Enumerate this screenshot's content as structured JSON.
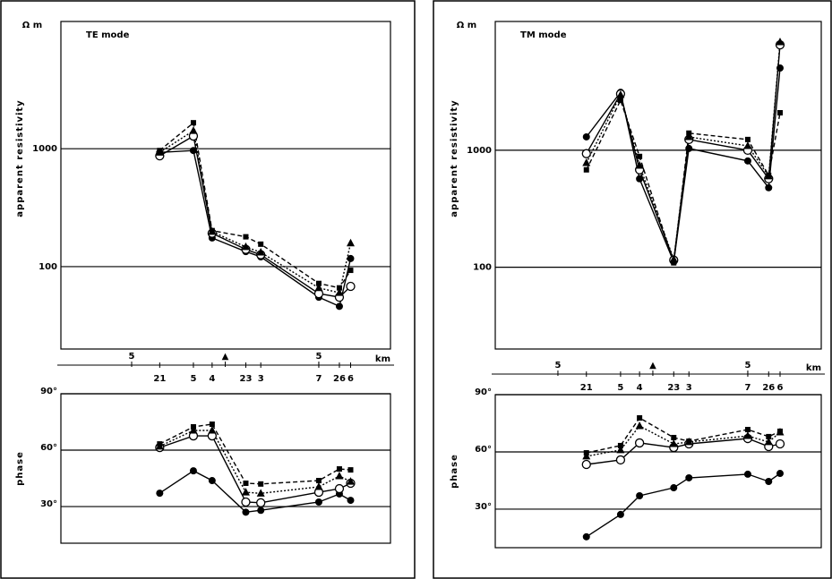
{
  "chart_data": [
    {
      "type": "line",
      "title": "TE mode",
      "yunit": "Ω m",
      "ylabel": "apparent resistivity",
      "log_y": true,
      "ylim": [
        20,
        12000
      ],
      "yticks": [
        100,
        1000
      ],
      "grid": true,
      "xlim": [
        1.22,
        18.83
      ],
      "xticks": [
        5,
        {
          "value": 10,
          "label": "▲"
        },
        {
          "value": 15,
          "label": "5"
        }
      ],
      "xlabel": "km",
      "x": [
        6.5,
        8.3,
        9.3,
        11.1,
        11.9,
        15.0,
        16.1,
        16.7
      ],
      "x_labels": [
        "21",
        "5",
        "4",
        "23",
        "3",
        "7",
        "26",
        "6"
      ],
      "series": [
        {
          "marker": "filled-circle",
          "dash": "solid",
          "color": "#000000",
          "values": [
            930,
            965,
            175,
            134,
            121,
            55,
            46,
            117
          ]
        },
        {
          "marker": "open-circle",
          "dash": "solid",
          "color": "#000000",
          "values": [
            870,
            1280,
            192,
            140,
            126,
            59,
            55,
            68
          ]
        },
        {
          "marker": "triangle",
          "dash": "dotted",
          "color": "#000000",
          "values": [
            930,
            1420,
            198,
            147,
            132,
            66,
            60,
            158
          ]
        },
        {
          "marker": "square",
          "dash": "dashed",
          "color": "#000000",
          "values": [
            965,
            1660,
            202,
            179,
            155,
            72,
            66,
            93
          ]
        }
      ]
    },
    {
      "type": "line",
      "ylabel": "phase",
      "ylim": [
        10.5,
        90
      ],
      "yticks": [
        {
          "value": 30,
          "label": "30°"
        },
        {
          "value": 60,
          "label": "60°"
        },
        {
          "value": 90,
          "label": "90°"
        }
      ],
      "grid": true,
      "xlim": [
        1.22,
        18.83
      ],
      "x": [
        6.5,
        8.3,
        9.3,
        11.1,
        11.9,
        15.0,
        16.1,
        16.7
      ],
      "series": [
        {
          "marker": "filled-circle",
          "dash": "solid",
          "color": "#000000",
          "values": [
            37.1,
            49,
            43.8,
            27,
            28,
            32.4,
            36.7,
            33.3
          ]
        },
        {
          "marker": "open-circle",
          "dash": "solid",
          "color": "#000000",
          "values": [
            61.4,
            67.6,
            67.6,
            32.4,
            32,
            37.6,
            39.5,
            42.4
          ]
        },
        {
          "marker": "triangle",
          "dash": "dotted",
          "color": "#000000",
          "values": [
            62,
            70.5,
            70.5,
            37.6,
            37,
            40.5,
            46.2,
            43.3
          ]
        },
        {
          "marker": "square",
          "dash": "dashed",
          "color": "#000000",
          "values": [
            63.3,
            72.4,
            73.8,
            42.4,
            42,
            43.8,
            50,
            49.5
          ]
        }
      ]
    },
    {
      "type": "line",
      "title": "TM mode",
      "yunit": "Ω m",
      "ylabel": "apparent resistivity",
      "log_y": true,
      "ylim": [
        20,
        12600
      ],
      "yticks": [
        100,
        1000
      ],
      "grid": true,
      "xlim": [
        1.7,
        18.87
      ],
      "xticks": [
        5,
        {
          "value": 10,
          "label": "▲"
        },
        {
          "value": 15,
          "label": "5"
        }
      ],
      "xlabel": "km",
      "x": [
        6.5,
        8.3,
        9.3,
        11.1,
        11.9,
        15.0,
        16.1,
        16.7
      ],
      "x_labels": [
        "21",
        "5",
        "4",
        "23",
        "3",
        "7",
        "26",
        "6"
      ],
      "series": [
        {
          "marker": "filled-circle",
          "dash": "solid",
          "color": "#000000",
          "values": [
            1300,
            3130,
            570,
            111,
            1035,
            810,
            478,
            5040
          ]
        },
        {
          "marker": "open-circle",
          "dash": "solid",
          "color": "#000000",
          "values": [
            935,
            3030,
            680,
            115,
            1235,
            1000,
            570,
            7950
          ]
        },
        {
          "marker": "triangle",
          "dash": "dotted",
          "color": "#000000",
          "values": [
            780,
            2970,
            740,
            117,
            1300,
            1090,
            600,
            8400
          ]
        },
        {
          "marker": "square",
          "dash": "dashed",
          "color": "#000000",
          "values": [
            680,
            2670,
            885,
            109,
            1400,
            1235,
            610,
            2090
          ]
        }
      ]
    },
    {
      "type": "line",
      "ylabel": "phase",
      "ylim": [
        9.8,
        90
      ],
      "yticks": [
        {
          "value": 30,
          "label": "30°"
        },
        {
          "value": 60,
          "label": "60°"
        },
        {
          "value": 90,
          "label": "90°"
        }
      ],
      "grid": true,
      "xlim": [
        1.7,
        18.87
      ],
      "x": [
        6.5,
        8.3,
        9.3,
        11.1,
        11.9,
        15.0,
        16.1,
        16.7
      ],
      "series": [
        {
          "marker": "filled-circle",
          "dash": "solid",
          "color": "#000000",
          "values": [
            15.5,
            27.2,
            37,
            41.2,
            46.4,
            48.3,
            44.5,
            48.7
          ]
        },
        {
          "marker": "open-circle",
          "dash": "solid",
          "color": "#000000",
          "values": [
            53.4,
            55.8,
            64.7,
            62.3,
            64.2,
            67,
            62.8,
            64.2
          ]
        },
        {
          "marker": "triangle",
          "dash": "dotted",
          "color": "#000000",
          "values": [
            57.7,
            61,
            73.6,
            64.2,
            65.2,
            68.4,
            65.2,
            70.3
          ]
        },
        {
          "marker": "square",
          "dash": "dashed",
          "color": "#000000",
          "values": [
            59.5,
            63.3,
            77.8,
            67.5,
            65.6,
            71.7,
            68,
            70.8
          ]
        }
      ]
    }
  ]
}
